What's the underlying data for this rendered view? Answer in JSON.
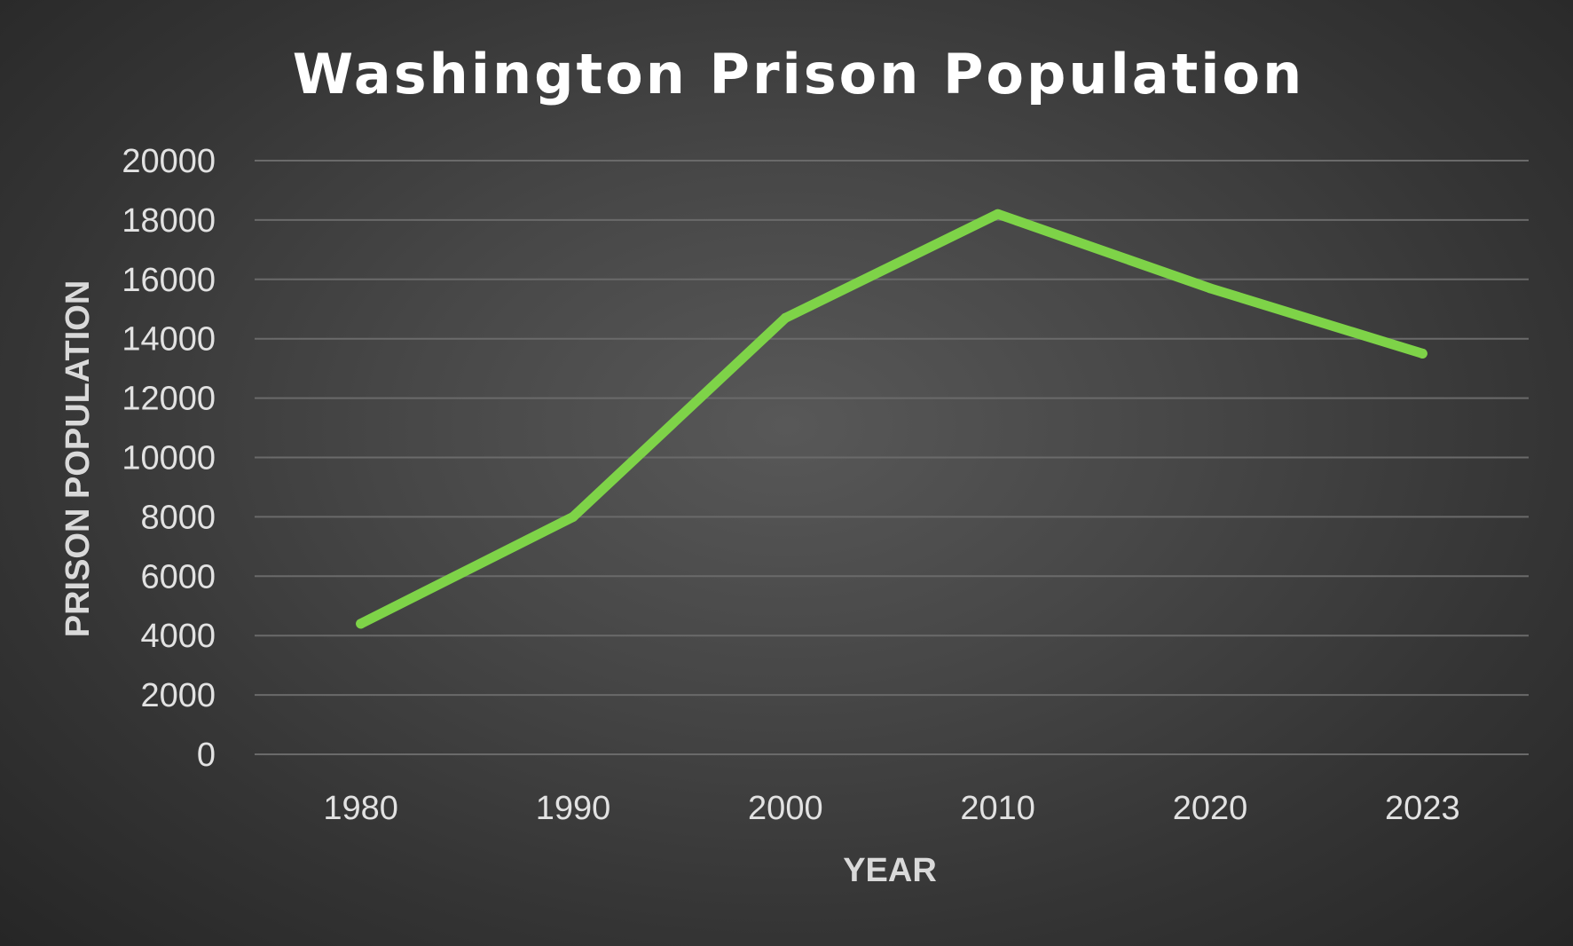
{
  "chart_data": {
    "type": "line",
    "title": "Washington Prison Population",
    "xlabel": "YEAR",
    "ylabel": "PRISON POPULATION",
    "categories": [
      "1980",
      "1990",
      "2000",
      "2010",
      "2020",
      "2023"
    ],
    "series": [
      {
        "values": [
          4400,
          8000,
          14700,
          18200,
          15700,
          13500
        ],
        "color": "#7ed348"
      }
    ],
    "ylim": [
      0,
      20000
    ],
    "yticks": [
      "0",
      "2000",
      "4000",
      "6000",
      "8000",
      "10000",
      "12000",
      "14000",
      "16000",
      "18000",
      "20000"
    ],
    "grid": true,
    "legend": "none"
  }
}
